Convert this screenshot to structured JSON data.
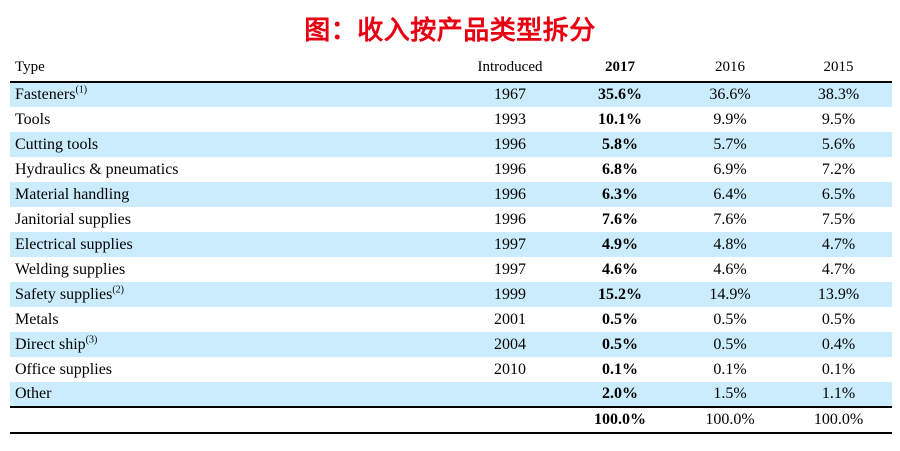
{
  "title": "图：收入按产品类型拆分",
  "colors": {
    "title_red": "#e60012",
    "stripe_blue": "#cbecfc",
    "rule_black": "#000000"
  },
  "chart_data": {
    "type": "table",
    "title": "图：收入按产品类型拆分",
    "columns": [
      "Type",
      "Introduced",
      "2017",
      "2016",
      "2015"
    ],
    "rows": [
      {
        "type": "Fasteners",
        "note": "(1)",
        "introduced": "1967",
        "y2017": "35.6%",
        "y2016": "36.6%",
        "y2015": "38.3%"
      },
      {
        "type": "Tools",
        "note": "",
        "introduced": "1993",
        "y2017": "10.1%",
        "y2016": "9.9%",
        "y2015": "9.5%"
      },
      {
        "type": "Cutting tools",
        "note": "",
        "introduced": "1996",
        "y2017": "5.8%",
        "y2016": "5.7%",
        "y2015": "5.6%"
      },
      {
        "type": "Hydraulics & pneumatics",
        "note": "",
        "introduced": "1996",
        "y2017": "6.8%",
        "y2016": "6.9%",
        "y2015": "7.2%"
      },
      {
        "type": "Material handling",
        "note": "",
        "introduced": "1996",
        "y2017": "6.3%",
        "y2016": "6.4%",
        "y2015": "6.5%"
      },
      {
        "type": "Janitorial supplies",
        "note": "",
        "introduced": "1996",
        "y2017": "7.6%",
        "y2016": "7.6%",
        "y2015": "7.5%"
      },
      {
        "type": "Electrical supplies",
        "note": "",
        "introduced": "1997",
        "y2017": "4.9%",
        "y2016": "4.8%",
        "y2015": "4.7%"
      },
      {
        "type": "Welding supplies",
        "note": "",
        "introduced": "1997",
        "y2017": "4.6%",
        "y2016": "4.6%",
        "y2015": "4.7%"
      },
      {
        "type": "Safety supplies",
        "note": "(2)",
        "introduced": "1999",
        "y2017": "15.2%",
        "y2016": "14.9%",
        "y2015": "13.9%"
      },
      {
        "type": "Metals",
        "note": "",
        "introduced": "2001",
        "y2017": "0.5%",
        "y2016": "0.5%",
        "y2015": "0.5%"
      },
      {
        "type": "Direct ship",
        "note": "(3)",
        "introduced": "2004",
        "y2017": "0.5%",
        "y2016": "0.5%",
        "y2015": "0.4%"
      },
      {
        "type": "Office supplies",
        "note": "",
        "introduced": "2010",
        "y2017": "0.1%",
        "y2016": "0.1%",
        "y2015": "0.1%"
      },
      {
        "type": "Other",
        "note": "",
        "introduced": "",
        "y2017": "2.0%",
        "y2016": "1.5%",
        "y2015": "1.1%"
      }
    ],
    "total": {
      "y2017": "100.0%",
      "y2016": "100.0%",
      "y2015": "100.0%"
    }
  }
}
